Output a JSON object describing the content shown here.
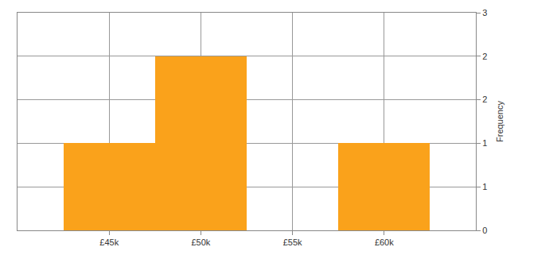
{
  "chart_data": {
    "type": "histogram",
    "bins": [
      42500,
      47500,
      52500,
      57500,
      62500
    ],
    "values": [
      1,
      2,
      0,
      1
    ],
    "color": "#faa21b",
    "xlim": [
      40000,
      65000
    ],
    "xticks": [
      {
        "value": 45000,
        "label": "£45k"
      },
      {
        "value": 50000,
        "label": "£50k"
      },
      {
        "value": 55000,
        "label": "£55k"
      },
      {
        "value": 60000,
        "label": "£60k"
      }
    ],
    "ylim": [
      0,
      2.5
    ],
    "yticks": [
      0,
      {
        "value": 0.5,
        "label": "1"
      },
      1,
      {
        "value": 1.5,
        "label": "2"
      },
      2,
      {
        "value": 2.5,
        "label": "3"
      }
    ],
    "y_label": "Frequency",
    "grid": true
  }
}
